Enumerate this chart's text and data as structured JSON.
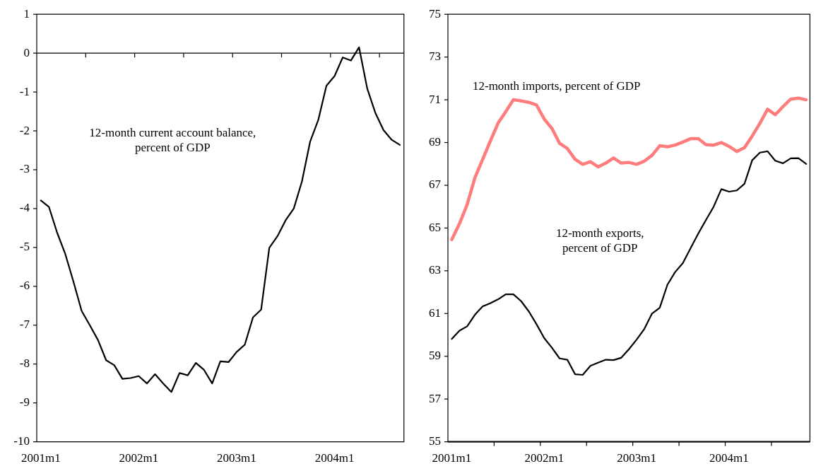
{
  "chart_data": [
    {
      "type": "line",
      "categories": [
        "2001m1",
        null,
        null,
        null,
        null,
        null,
        null,
        null,
        null,
        null,
        null,
        null,
        "2002m1",
        null,
        null,
        null,
        null,
        null,
        null,
        null,
        null,
        null,
        null,
        null,
        "2003m1",
        null,
        null,
        null,
        null,
        null,
        null,
        null,
        null,
        null,
        null,
        null,
        "2004m1",
        null,
        null,
        null,
        null,
        null,
        null,
        null,
        null
      ],
      "series": [
        {
          "name": "12-month current account balance, percent of GDP",
          "color": "#000000",
          "values": [
            -3.79,
            -3.96,
            -4.62,
            -5.17,
            -5.88,
            -6.63,
            -7.0,
            -7.38,
            -7.9,
            -8.03,
            -8.38,
            -8.36,
            -8.31,
            -8.5,
            -8.26,
            -8.5,
            -8.72,
            -8.23,
            -8.29,
            -7.97,
            -8.15,
            -8.5,
            -7.93,
            -7.95,
            -7.69,
            -7.5,
            -6.8,
            -6.6,
            -5.01,
            -4.71,
            -4.3,
            -4.0,
            -3.3,
            -2.28,
            -1.72,
            -0.84,
            -0.59,
            -0.11,
            -0.19,
            0.15,
            -0.91,
            -1.54,
            -1.98,
            -2.23,
            -2.36
          ]
        }
      ],
      "ref_lines": [
        {
          "axis": "y",
          "value": 0
        }
      ],
      "ylim": [
        -10,
        1
      ],
      "yticks": [
        -10,
        -9,
        -8,
        -7,
        -6,
        -5,
        -4,
        -3,
        -2,
        -1,
        0,
        1
      ],
      "grid": false,
      "legend": false
    },
    {
      "type": "line",
      "categories": [
        "2001m1",
        null,
        null,
        null,
        null,
        null,
        null,
        null,
        null,
        null,
        null,
        null,
        "2002m1",
        null,
        null,
        null,
        null,
        null,
        null,
        null,
        null,
        null,
        null,
        null,
        "2003m1",
        null,
        null,
        null,
        null,
        null,
        null,
        null,
        null,
        null,
        null,
        null,
        "2004m1",
        null,
        null,
        null,
        null,
        null,
        null,
        null,
        null,
        null,
        null
      ],
      "series": [
        {
          "name": "12-month imports, percent of GDP",
          "color": "#ff7c7c",
          "values": [
            64.46,
            65.2,
            66.1,
            67.35,
            68.2,
            69.06,
            69.9,
            70.44,
            71.0,
            70.95,
            70.88,
            70.76,
            70.1,
            69.66,
            68.96,
            68.72,
            68.22,
            67.98,
            68.1,
            67.86,
            68.04,
            68.28,
            68.04,
            68.07,
            67.98,
            68.13,
            68.4,
            68.85,
            68.8,
            68.88,
            69.02,
            69.18,
            69.18,
            68.9,
            68.88,
            69.0,
            68.82,
            68.58,
            68.76,
            69.3,
            69.9,
            70.56,
            70.3,
            70.68,
            71.03,
            71.08,
            71.0
          ]
        },
        {
          "name": "12-month exports, percent of GDP",
          "color": "#000000",
          "values": [
            59.81,
            60.2,
            60.4,
            60.94,
            61.33,
            61.48,
            61.66,
            61.9,
            61.9,
            61.58,
            61.1,
            60.5,
            59.85,
            59.4,
            58.9,
            58.84,
            58.16,
            58.13,
            58.55,
            58.7,
            58.84,
            58.82,
            58.93,
            59.33,
            59.78,
            60.28,
            61.0,
            61.27,
            62.35,
            62.94,
            63.36,
            64.05,
            64.74,
            65.38,
            66.0,
            66.82,
            66.7,
            66.76,
            67.07,
            68.17,
            68.53,
            68.59,
            68.15,
            68.03,
            68.26,
            68.27,
            68.0
          ]
        }
      ],
      "ylim": [
        55,
        75
      ],
      "yticks": [
        55,
        57,
        59,
        61,
        63,
        65,
        67,
        69,
        71,
        73,
        75
      ],
      "grid": false,
      "legend": false
    }
  ]
}
